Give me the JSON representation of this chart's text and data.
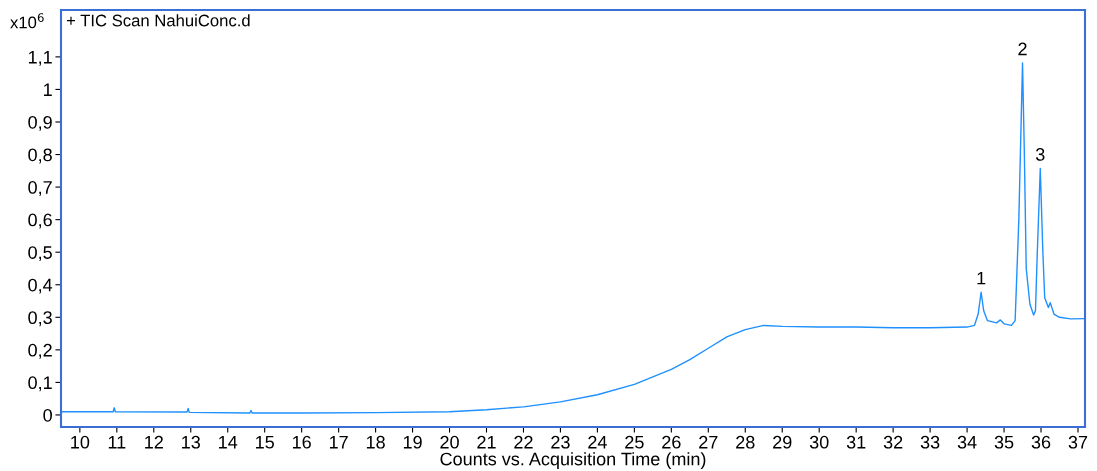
{
  "chart_data": {
    "type": "line",
    "title": "+ TIC Scan NahuiConc.d",
    "xlabel": "Counts vs. Acquisition Time (min)",
    "annotations": [
      "x10$^{6}$",
      {
        "text": "1",
        "x": 34.38,
        "y": 0.377
      },
      {
        "text": "2",
        "x": 35.5,
        "y": 1.081
      },
      {
        "text": "3",
        "x": 35.98,
        "y": 0.757
      }
    ],
    "x": [
      9.5,
      10.9,
      10.93,
      10.96,
      12.9,
      12.93,
      12.96,
      14.6,
      14.63,
      14.66,
      16,
      18,
      20,
      21,
      22,
      23,
      24,
      25,
      26,
      26.5,
      27,
      27.5,
      28,
      28.5,
      29,
      30,
      31,
      32,
      33,
      34,
      34.2,
      34.3,
      34.38,
      34.45,
      34.55,
      34.8,
      34.9,
      35.0,
      35.2,
      35.3,
      35.4,
      35.5,
      35.55,
      35.6,
      35.7,
      35.8,
      35.85,
      35.9,
      35.98,
      36.05,
      36.1,
      36.2,
      36.25,
      36.35,
      36.5,
      36.8,
      37.19
    ],
    "series": [
      {
        "color": "#1e90ff",
        "values": [
          0.01,
          0.01,
          0.022,
          0.01,
          0.009,
          0.02,
          0.008,
          0.006,
          0.014,
          0.006,
          0.006,
          0.007,
          0.01,
          0.016,
          0.025,
          0.04,
          0.062,
          0.094,
          0.14,
          0.17,
          0.205,
          0.24,
          0.262,
          0.275,
          0.272,
          0.27,
          0.27,
          0.268,
          0.268,
          0.27,
          0.275,
          0.31,
          0.377,
          0.32,
          0.29,
          0.283,
          0.292,
          0.28,
          0.275,
          0.29,
          0.6,
          1.081,
          0.8,
          0.45,
          0.34,
          0.307,
          0.32,
          0.5,
          0.757,
          0.5,
          0.36,
          0.33,
          0.345,
          0.31,
          0.3,
          0.295,
          0.296
        ]
      }
    ],
    "xlim": [
      9.49,
      37.19
    ],
    "ylim": [
      -0.037,
      1.244
    ],
    "xticks": [
      10,
      11,
      12,
      13,
      14,
      15,
      16,
      17,
      18,
      19,
      20,
      21,
      22,
      23,
      24,
      25,
      26,
      27,
      28,
      29,
      30,
      31,
      32,
      33,
      34,
      35,
      36,
      37
    ],
    "yticks": [
      0,
      {
        "value": 0.1,
        "label": "0,1"
      },
      {
        "value": 0.2,
        "label": "0,2"
      },
      {
        "value": 0.3,
        "label": "0,3"
      },
      {
        "value": 0.4,
        "label": "0,4"
      },
      {
        "value": 0.5,
        "label": "0,5"
      },
      {
        "value": 0.6,
        "label": "0,6"
      },
      {
        "value": 0.7,
        "label": "0,7"
      },
      {
        "value": 0.8,
        "label": "0,8"
      },
      {
        "value": 0.9,
        "label": "0,9"
      },
      1,
      {
        "value": 1.1,
        "label": "1,1"
      }
    ],
    "grid": false,
    "legend": false
  }
}
